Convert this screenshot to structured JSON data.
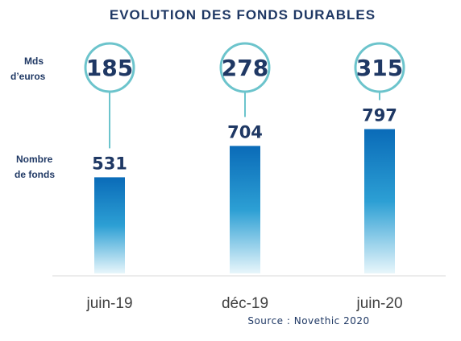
{
  "chart_data": {
    "type": "bar",
    "title": "EVOLUTION DES FONDS DURABLES",
    "categories": [
      "juin-19",
      "déc-19",
      "juin-20"
    ],
    "series": [
      {
        "name": "Nombre de fonds",
        "values": [
          531,
          704,
          797
        ]
      },
      {
        "name": "Mds d'euros",
        "values": [
          185,
          278,
          315
        ]
      }
    ],
    "label_amount": [
      "Mds",
      "d’euros"
    ],
    "label_count": [
      "Nombre",
      "de fonds"
    ],
    "source": "Source :  Novethic 2020",
    "ylim": [
      0,
      900
    ],
    "grid": false,
    "legend": "none",
    "colors": {
      "bar_top": "#0a6bb8",
      "bar_mid": "#2c9fd4",
      "bar_bottom": "#e8f6fb",
      "circle_stroke": "#6cc4cc",
      "text_dark": "#1f3864",
      "axis_text": "#404040",
      "baseline": "#d9d9d9"
    }
  }
}
